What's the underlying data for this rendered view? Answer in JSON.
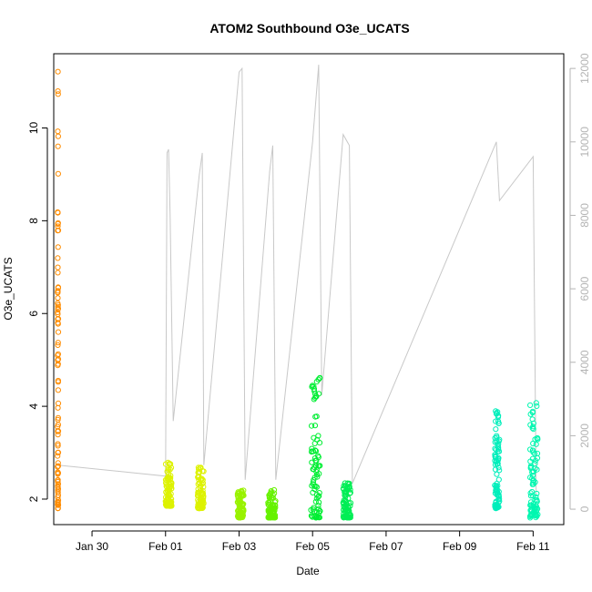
{
  "chart_data": {
    "type": "scatter",
    "title": "ATOM2 Southbound O3e_UCATS",
    "xlabel": "Date",
    "ylabel": "O3e_UCATS",
    "x_ticks": [
      {
        "date": "2016-01-30",
        "label": "Jan 30"
      },
      {
        "date": "2016-02-01",
        "label": "Feb 01"
      },
      {
        "date": "2016-02-03",
        "label": "Feb 03"
      },
      {
        "date": "2016-02-05",
        "label": "Feb 05"
      },
      {
        "date": "2016-02-07",
        "label": "Feb 07"
      },
      {
        "date": "2016-02-09",
        "label": "Feb 09"
      },
      {
        "date": "2016-02-11",
        "label": "Feb 11"
      }
    ],
    "xlim": [
      "2016-01-28T23:00",
      "2016-02-11T20:00"
    ],
    "y_left": {
      "ticks": [
        2,
        4,
        6,
        8,
        10
      ],
      "ylim": [
        1.45,
        11.6
      ]
    },
    "y_right": {
      "ticks": [
        0,
        2000,
        4000,
        6000,
        8000,
        10000,
        12000
      ],
      "ylim": [
        -420,
        12400
      ],
      "color": "#b4b4b4"
    },
    "point_series": [
      {
        "date_start": "2016-01-29T01:30",
        "date_end": "2016-01-29T02:00",
        "y_min": 1.8,
        "y_max": 11.3,
        "color": "#ff8c00"
      },
      {
        "date_start": "2016-02-01T00:00",
        "date_end": "2016-02-01T04:00",
        "y_min": 1.85,
        "y_max": 2.8,
        "color": "#ddf200"
      },
      {
        "date_start": "2016-02-01T21:00",
        "date_end": "2016-02-02T01:00",
        "y_min": 1.8,
        "y_max": 2.75,
        "color": "#ddf200"
      },
      {
        "date_start": "2016-02-02T23:00",
        "date_end": "2016-02-03T03:00",
        "y_min": 1.6,
        "y_max": 2.2,
        "color": "#99f200"
      },
      {
        "date_start": "2016-02-03T19:00",
        "date_end": "2016-02-04T00:00",
        "y_min": 1.6,
        "y_max": 2.2,
        "color": "#66f200"
      },
      {
        "date_start": "2016-02-04T23:00",
        "date_end": "2016-02-05T05:00",
        "y_min": 1.6,
        "y_max": 4.8,
        "color": "#00ee33"
      },
      {
        "date_start": "2016-02-05T20:00",
        "date_end": "2016-02-06T01:00",
        "y_min": 1.6,
        "y_max": 2.4,
        "color": "#00ee55"
      },
      {
        "date_start": "2016-02-09T23:00",
        "date_end": "2016-02-10T02:00",
        "y_min": 1.8,
        "y_max": 3.9,
        "color": "#00eebb"
      },
      {
        "date_start": "2016-02-10T22:00",
        "date_end": "2016-02-11T03:00",
        "y_min": 1.6,
        "y_max": 4.1,
        "color": "#00f7b0"
      }
    ],
    "line_series": {
      "axis": "right",
      "color": "#c8c8c8",
      "points": [
        {
          "date": "2016-01-29T02:00",
          "value": 1200
        },
        {
          "date": "2016-02-01T00:00",
          "value": 900
        },
        {
          "date": "2016-02-01T01:00",
          "value": 9700
        },
        {
          "date": "2016-02-01T02:00",
          "value": 9800
        },
        {
          "date": "2016-02-01T03:00",
          "value": 8000
        },
        {
          "date": "2016-02-01T05:00",
          "value": 2400
        },
        {
          "date": "2016-02-01T22:00",
          "value": 9100
        },
        {
          "date": "2016-02-02T00:00",
          "value": 9700
        },
        {
          "date": "2016-02-02T01:00",
          "value": 1200
        },
        {
          "date": "2016-02-03T00:00",
          "value": 11900
        },
        {
          "date": "2016-02-03T02:00",
          "value": 12000
        },
        {
          "date": "2016-02-03T04:00",
          "value": 800
        },
        {
          "date": "2016-02-03T20:00",
          "value": 9200
        },
        {
          "date": "2016-02-03T22:00",
          "value": 9900
        },
        {
          "date": "2016-02-04T00:00",
          "value": 800
        },
        {
          "date": "2016-02-05T00:00",
          "value": 10000
        },
        {
          "date": "2016-02-05T04:00",
          "value": 12100
        },
        {
          "date": "2016-02-05T06:00",
          "value": 3100
        },
        {
          "date": "2016-02-05T20:00",
          "value": 10200
        },
        {
          "date": "2016-02-06T00:00",
          "value": 9900
        },
        {
          "date": "2016-02-06T02:00",
          "value": 700
        },
        {
          "date": "2016-02-10T00:00",
          "value": 10000
        },
        {
          "date": "2016-02-10T02:00",
          "value": 8400
        },
        {
          "date": "2016-02-11T00:00",
          "value": 9600
        },
        {
          "date": "2016-02-11T02:00",
          "value": 400
        }
      ]
    }
  }
}
